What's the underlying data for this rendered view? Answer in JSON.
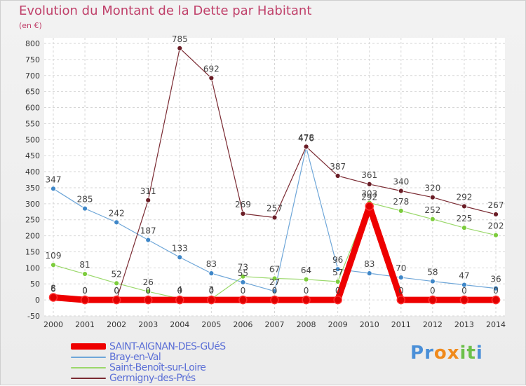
{
  "header": {
    "title": "Evolution du Montant de la Dette par Habitant",
    "subtitle": "(en €)"
  },
  "logo": {
    "text": "Proxiti",
    "letters": [
      "P",
      "r",
      "o",
      "x",
      "i",
      "t",
      "i"
    ],
    "colors": [
      "#4a8fd8",
      "#4a8fd8",
      "#f08a1c",
      "#f08a1c",
      "#6cc04a",
      "#6cc04a",
      "#4a8fd8"
    ]
  },
  "chart_data": {
    "type": "line",
    "title": "Evolution du Montant de la Dette par Habitant",
    "ylabel": "(en €)",
    "xlabel": "",
    "x": [
      "2000",
      "2001",
      "2002",
      "2003",
      "2004",
      "2005",
      "2006",
      "2007",
      "2008",
      "2009",
      "2010",
      "2011",
      "2012",
      "2013",
      "2014"
    ],
    "ylim": [
      -50,
      800
    ],
    "yticks": [
      -50,
      0,
      50,
      100,
      150,
      200,
      250,
      300,
      350,
      400,
      450,
      500,
      550,
      600,
      650,
      700,
      750,
      800
    ],
    "grid": true,
    "legend_position": "bottom-left",
    "series": [
      {
        "name": "SAINT-AIGNAN-DES-GUéS",
        "color": "#ee0000",
        "marker": "#e00000",
        "width": 9,
        "values": [
          8,
          0,
          0,
          0,
          0,
          0,
          0,
          0,
          0,
          0,
          292,
          0,
          0,
          0,
          0
        ],
        "labels": [
          "8",
          "0",
          "0",
          "0",
          "0",
          "0",
          "0",
          "0",
          "0",
          "0",
          "292",
          "0",
          "0",
          "0",
          "0"
        ]
      },
      {
        "name": "Bray-en-Val",
        "color": "#6ea6d8",
        "marker": "#3f87c8",
        "width": 1.2,
        "values": [
          347,
          285,
          242,
          187,
          133,
          83,
          55,
          27,
          476,
          96,
          83,
          70,
          58,
          47,
          36
        ],
        "labels": [
          "347",
          "285",
          "242",
          "187",
          "133",
          "83",
          "55",
          "27",
          "476",
          "96",
          "83",
          "70",
          "58",
          "47",
          "36"
        ]
      },
      {
        "name": "Saint-Benoît-sur-Loire",
        "color": "#9ad86a",
        "marker": "#7ccc3c",
        "width": 1.2,
        "values": [
          109,
          81,
          52,
          26,
          4,
          3,
          73,
          67,
          64,
          57,
          303,
          278,
          252,
          225,
          202
        ],
        "labels": [
          "109",
          "81",
          "52",
          "26",
          "4",
          "3",
          "73",
          "67",
          "64",
          "57",
          "303",
          "278",
          "252",
          "225",
          "202"
        ]
      },
      {
        "name": "Germigny-des-Prés",
        "color": "#7a2a32",
        "marker": "#6a1d26",
        "width": 1.2,
        "values": [
          6,
          0,
          0,
          311,
          785,
          692,
          269,
          257,
          478,
          387,
          361,
          340,
          320,
          292,
          267
        ],
        "labels": [
          "6",
          "0",
          "0",
          "311",
          "785",
          "692",
          "269",
          "257",
          "478",
          "387",
          "361",
          "340",
          "320",
          "292",
          "267"
        ]
      }
    ]
  }
}
